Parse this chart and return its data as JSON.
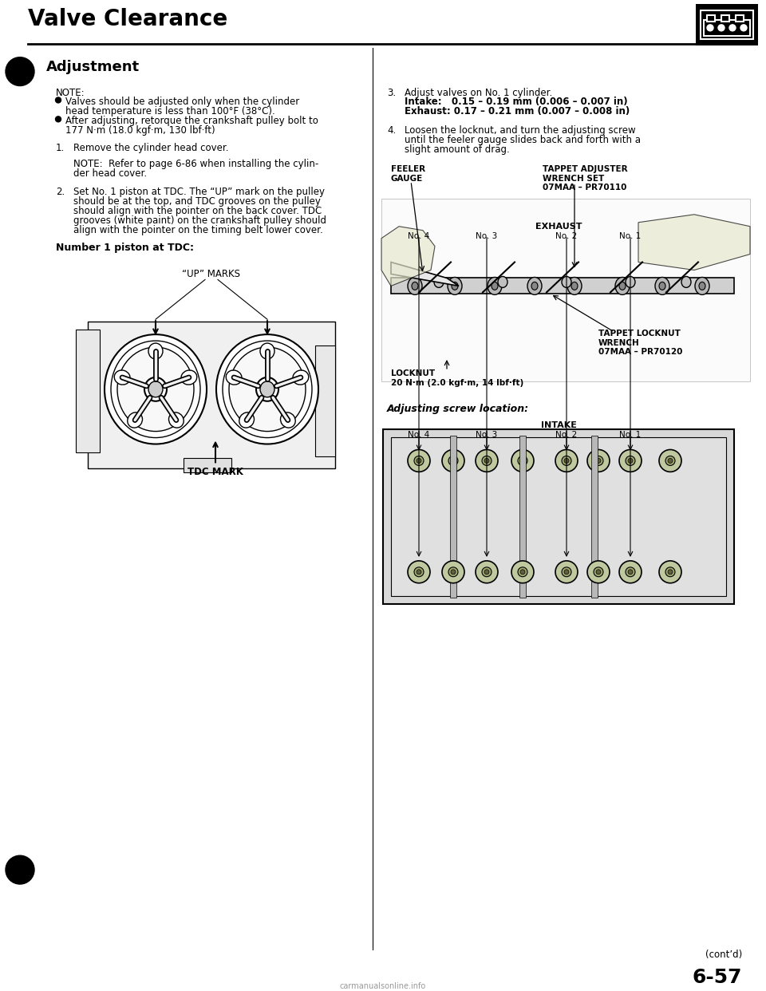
{
  "title": "Valve Clearance",
  "section": "Adjustment",
  "bg_color": "#ffffff",
  "note_label": "NOTE:",
  "bullet1_line1": "Valves should be adjusted only when the cylinder",
  "bullet1_line2": "head temperature is less than 100°F (38°C).",
  "bullet2_line1": "After adjusting, retorque the crankshaft pulley bolt to",
  "bullet2_line2": "177 N·m (18.0 kgf·m, 130 lbf·ft)",
  "step1_text": "Remove the cylinder head cover.",
  "step1_note1": "NOTE:  Refer to page 6-86 when installing the cylin-",
  "step1_note2": "der head cover.",
  "step2_line1": "Set No. 1 piston at TDC. The “UP” mark on the pulley",
  "step2_line2": "should be at the top, and TDC grooves on the pulley",
  "step2_line3": "should align with the pointer on the back cover. TDC",
  "step2_line4": "grooves (white paint) on the crankshaft pulley should",
  "step2_line5": "align with the pointer on the timing belt lower cover.",
  "num1_piston_label": "Number 1 piston at TDC:",
  "up_marks_label": "“UP” MARKS",
  "tdc_mark_label": "TDC MARK",
  "step3_text": "Adjust valves on No. 1 cylinder.",
  "step3_intake": "Intake:   0.15 – 0.19 mm (0.006 – 0.007 in)",
  "step3_exhaust": "Exhaust: 0.17 – 0.21 mm (0.007 – 0.008 in)",
  "step4_line1": "Loosen the locknut, and turn the adjusting screw",
  "step4_line2": "until the feeler gauge slides back and forth with a",
  "step4_line3": "slight amount of drag.",
  "feeler_gauge": "FEELER\nGAUGE",
  "tappet_adjuster": "TAPPET ADJUSTER\nWRENCH SET\n07MAA – PR70110",
  "tappet_locknut": "TAPPET LOCKNUT\nWRENCH\n07MAA – PR70120",
  "locknut_text": "LOCKNUT\n20 N·m (2.0 kgf·m, 14 lbf·ft)",
  "adj_screw_loc": "Adjusting screw location:",
  "intake_label": "INTAKE",
  "exhaust_label": "EXHAUST",
  "no4": "No. 4",
  "no3": "No. 3",
  "no2": "No. 2",
  "no1": "No. 1",
  "page_num": "6-57",
  "contd": "(cont’d)",
  "watermark": "carmanualsonline.info"
}
